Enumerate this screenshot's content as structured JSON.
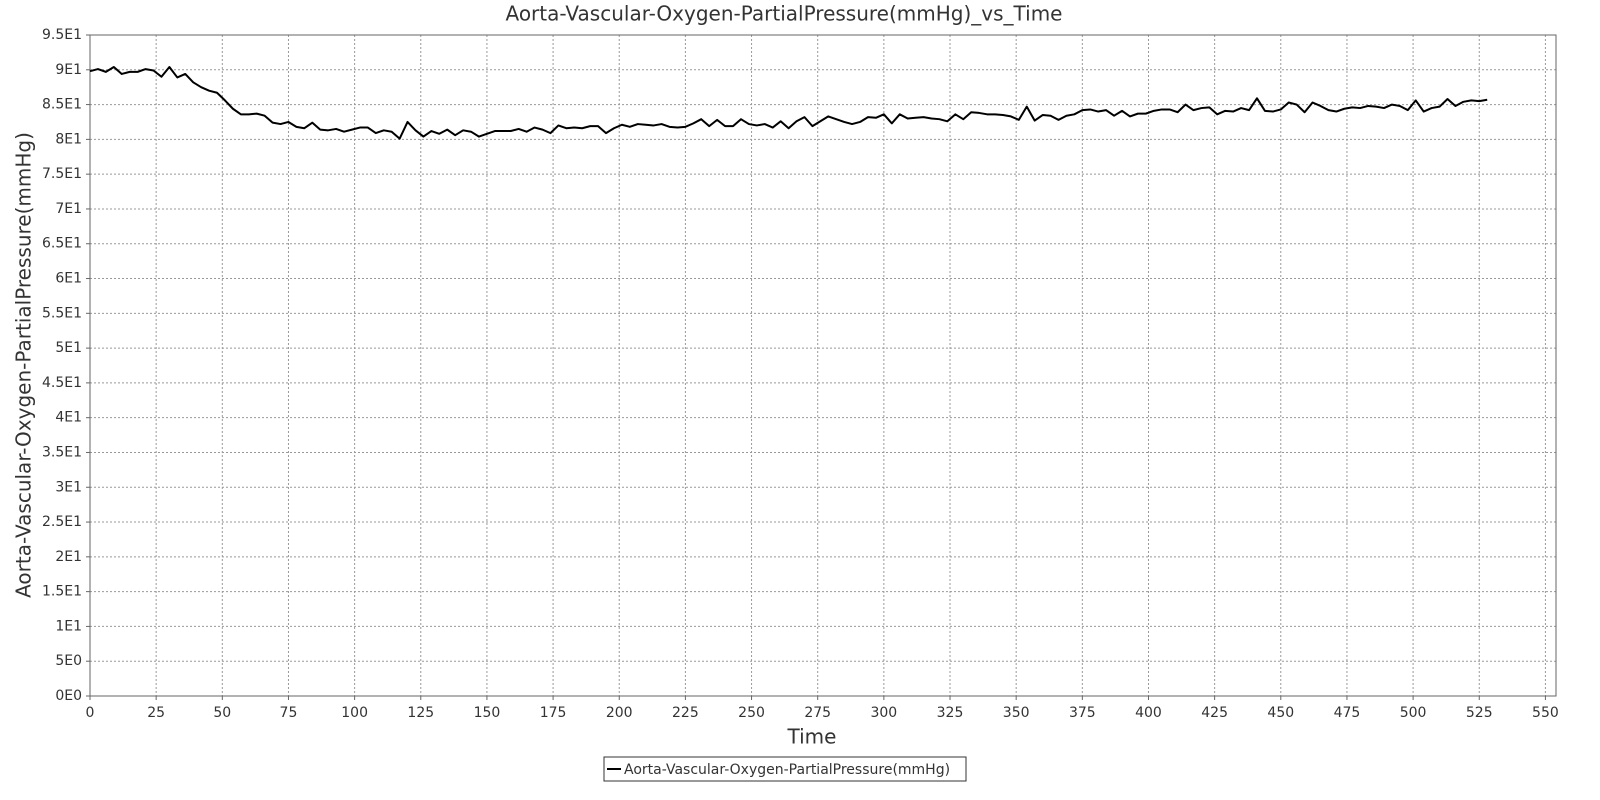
{
  "chart_data": {
    "type": "line",
    "title": "Aorta-Vascular-Oxygen-PartialPressure(mmHg)_vs_Time",
    "x_label": "Time",
    "y_label": "Aorta-Vascular-Oxygen-PartialPressure(mmHg)",
    "x": [
      0,
      3,
      6,
      9,
      12,
      15,
      18,
      21,
      24,
      27,
      30,
      33,
      36,
      39,
      42,
      45,
      48,
      51,
      54,
      57,
      60,
      63,
      66,
      69,
      72,
      75,
      78,
      81,
      84,
      87,
      90,
      93,
      96,
      99,
      102,
      105,
      108,
      111,
      114,
      117,
      120,
      123,
      126,
      129,
      132,
      135,
      138,
      141,
      144,
      147,
      150,
      153,
      156,
      159,
      162,
      165,
      168,
      171,
      174,
      177,
      180,
      183,
      186,
      189,
      192,
      195,
      198,
      201,
      204,
      207,
      210,
      213,
      216,
      219,
      222,
      225,
      228,
      231,
      234,
      237,
      240,
      243,
      246,
      249,
      252,
      255,
      258,
      261,
      264,
      267,
      270,
      273,
      276,
      279,
      282,
      285,
      288,
      291,
      294,
      297,
      300,
      303,
      306,
      309,
      312,
      315,
      318,
      321,
      324,
      327,
      330,
      333,
      336,
      339,
      342,
      345,
      348,
      351,
      354,
      357,
      360,
      363,
      366,
      369,
      372,
      375,
      378,
      381,
      384,
      387,
      390,
      393,
      396,
      399,
      402,
      405,
      408,
      411,
      414,
      417,
      420,
      423,
      426,
      429,
      432,
      435,
      438,
      441,
      444,
      447,
      450,
      453,
      456,
      459,
      462,
      465,
      468,
      471,
      474,
      477,
      480,
      483,
      486,
      489,
      492,
      495,
      498,
      501,
      504,
      507,
      510,
      513,
      516,
      519,
      522,
      525,
      528
    ],
    "series": [
      {
        "name": "Aorta-Vascular-Oxygen-PartialPressure(mmHg)",
        "color": "#000000",
        "values": [
          89.8,
          90.1,
          89.7,
          90.4,
          89.4,
          89.7,
          89.7,
          90.1,
          89.9,
          89.0,
          90.4,
          88.9,
          89.4,
          88.2,
          87.5,
          87.0,
          86.7,
          85.6,
          84.4,
          83.6,
          83.6,
          83.7,
          83.4,
          82.4,
          82.2,
          82.5,
          81.8,
          81.6,
          82.4,
          81.4,
          81.3,
          81.5,
          81.1,
          81.4,
          81.7,
          81.7,
          80.9,
          81.3,
          81.1,
          80.1,
          82.5,
          81.3,
          80.4,
          81.2,
          80.8,
          81.4,
          80.6,
          81.3,
          81.1,
          80.4,
          80.8,
          81.2,
          81.2,
          81.2,
          81.5,
          81.1,
          81.7,
          81.4,
          80.9,
          82.0,
          81.6,
          81.7,
          81.6,
          81.9,
          81.9,
          80.9,
          81.6,
          82.1,
          81.8,
          82.2,
          82.1,
          82.0,
          82.2,
          81.8,
          81.7,
          81.8,
          82.3,
          82.9,
          81.9,
          82.8,
          81.9,
          81.9,
          82.9,
          82.2,
          82.0,
          82.2,
          81.7,
          82.6,
          81.6,
          82.6,
          83.2,
          81.9,
          82.6,
          83.3,
          82.9,
          82.5,
          82.2,
          82.5,
          83.2,
          83.1,
          83.6,
          82.3,
          83.6,
          83.0,
          83.1,
          83.2,
          83.0,
          82.9,
          82.6,
          83.6,
          82.9,
          83.9,
          83.8,
          83.6,
          83.6,
          83.5,
          83.3,
          82.8,
          84.7,
          82.7,
          83.5,
          83.4,
          82.8,
          83.4,
          83.6,
          84.2,
          84.3,
          84.0,
          84.2,
          83.4,
          84.1,
          83.3,
          83.7,
          83.7,
          84.1,
          84.3,
          84.3,
          83.9,
          85.0,
          84.2,
          84.5,
          84.6,
          83.6,
          84.1,
          84.0,
          84.5,
          84.2,
          85.9,
          84.1,
          84.0,
          84.3,
          85.3,
          85.0,
          83.9,
          85.3,
          84.8,
          84.2,
          84.0,
          84.4,
          84.6,
          84.5,
          84.8,
          84.7,
          84.5,
          85.0,
          84.8,
          84.2,
          85.6,
          84.0,
          84.5,
          84.7,
          85.8,
          84.8,
          85.4,
          85.6,
          85.5,
          85.7
        ]
      }
    ],
    "xlim": [
      0,
      554
    ],
    "ylim": [
      0,
      95
    ],
    "xticks": [
      0,
      25,
      50,
      75,
      100,
      125,
      150,
      175,
      200,
      225,
      250,
      275,
      300,
      325,
      350,
      375,
      400,
      425,
      450,
      475,
      500,
      525,
      550
    ],
    "yticks": [
      {
        "value": 0,
        "label": "0E0"
      },
      {
        "value": 5,
        "label": "5E0"
      },
      {
        "value": 10,
        "label": "1E1"
      },
      {
        "value": 15,
        "label": "1.5E1"
      },
      {
        "value": 20,
        "label": "2E1"
      },
      {
        "value": 25,
        "label": "2.5E1"
      },
      {
        "value": 30,
        "label": "3E1"
      },
      {
        "value": 35,
        "label": "3.5E1"
      },
      {
        "value": 40,
        "label": "4E1"
      },
      {
        "value": 45,
        "label": "4.5E1"
      },
      {
        "value": 50,
        "label": "5E1"
      },
      {
        "value": 55,
        "label": "5.5E1"
      },
      {
        "value": 60,
        "label": "6E1"
      },
      {
        "value": 65,
        "label": "6.5E1"
      },
      {
        "value": 70,
        "label": "7E1"
      },
      {
        "value": 75,
        "label": "7.5E1"
      },
      {
        "value": 80,
        "label": "8E1"
      },
      {
        "value": 85,
        "label": "8.5E1"
      },
      {
        "value": 90,
        "label": "9E1"
      },
      {
        "value": 95,
        "label": "9.5E1"
      }
    ],
    "grid": true,
    "legend": "bottom"
  }
}
